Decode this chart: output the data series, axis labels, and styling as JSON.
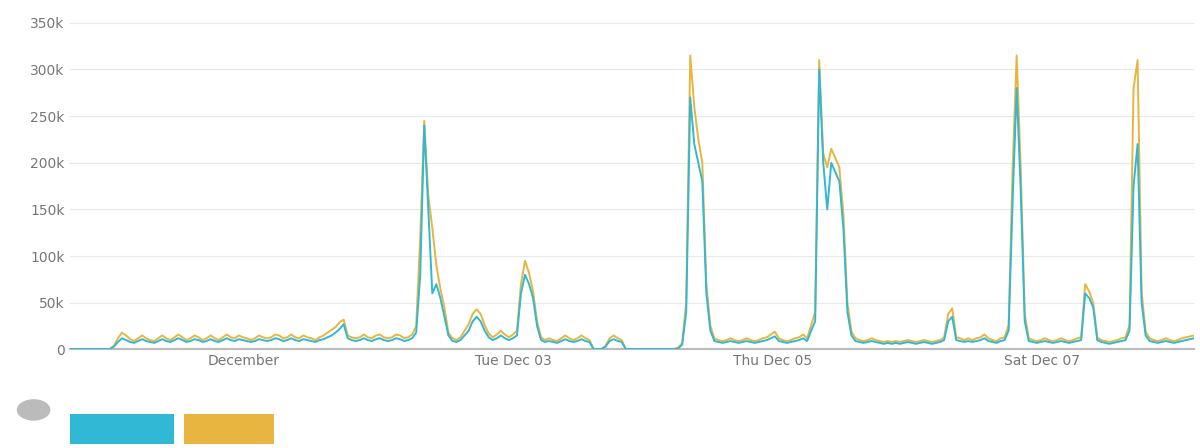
{
  "ylim": [
    0,
    360000
  ],
  "yticks": [
    0,
    50000,
    100000,
    150000,
    200000,
    250000,
    300000,
    350000
  ],
  "ytick_labels": [
    "0",
    "50k",
    "100k",
    "150k",
    "200k",
    "250k",
    "300k",
    "350k"
  ],
  "x_tick_positions": [
    0.155,
    0.395,
    0.625,
    0.865
  ],
  "x_tick_labels": [
    "December",
    "Tue Dec 03",
    "Thu Dec 05",
    "Sat Dec 07"
  ],
  "schedule_fails_color": "#30b8d4",
  "pod_created_color": "#e8b540",
  "background_color": "#ffffff",
  "grid_color": "#e8e8e8",
  "line_lw": 1.4,
  "schedule_fails_y": [
    500,
    500,
    500,
    500,
    500,
    500,
    500,
    500,
    500,
    500,
    500,
    3000,
    8000,
    12000,
    10000,
    8000,
    7000,
    9000,
    11000,
    9000,
    8000,
    7000,
    9000,
    11000,
    9000,
    8000,
    10000,
    12000,
    10000,
    8000,
    9000,
    11000,
    10000,
    8000,
    9000,
    11000,
    9000,
    8000,
    10000,
    12000,
    10000,
    9000,
    11000,
    10000,
    9000,
    8000,
    9000,
    11000,
    10000,
    9000,
    10000,
    12000,
    11000,
    9000,
    10000,
    12000,
    10000,
    9000,
    11000,
    10000,
    9000,
    8000,
    10000,
    11000,
    13000,
    15000,
    18000,
    22000,
    27000,
    12000,
    10000,
    9000,
    10000,
    12000,
    10000,
    9000,
    11000,
    12000,
    10000,
    9000,
    10000,
    12000,
    11000,
    9000,
    10000,
    12000,
    18000,
    80000,
    240000,
    150000,
    60000,
    70000,
    55000,
    35000,
    15000,
    9000,
    8000,
    10000,
    15000,
    20000,
    30000,
    35000,
    30000,
    20000,
    13000,
    10000,
    12000,
    15000,
    12000,
    10000,
    12000,
    15000,
    60000,
    80000,
    70000,
    55000,
    25000,
    10000,
    8000,
    9000,
    8000,
    7000,
    9000,
    11000,
    9000,
    8000,
    9000,
    11000,
    9000,
    8000,
    500,
    500,
    500,
    3000,
    9000,
    11000,
    9000,
    8000,
    500,
    500,
    500,
    500,
    500,
    500,
    500,
    500,
    500,
    500,
    500,
    500,
    500,
    1000,
    5000,
    40000,
    270000,
    220000,
    200000,
    180000,
    60000,
    20000,
    9000,
    8000,
    7000,
    8000,
    9000,
    8000,
    7000,
    8000,
    9000,
    8000,
    7000,
    8000,
    9000,
    10000,
    12000,
    14000,
    9000,
    8000,
    7000,
    8000,
    9000,
    10000,
    12000,
    9000,
    20000,
    30000,
    300000,
    200000,
    150000,
    200000,
    190000,
    180000,
    130000,
    40000,
    15000,
    9000,
    8000,
    7000,
    8000,
    9000,
    8000,
    7000,
    6000,
    7000,
    6000,
    7000,
    6000,
    7000,
    8000,
    7000,
    6000,
    7000,
    8000,
    7000,
    6000,
    7000,
    8000,
    10000,
    30000,
    35000,
    10000,
    9000,
    8000,
    9000,
    8000,
    9000,
    10000,
    12000,
    9000,
    8000,
    7000,
    9000,
    10000,
    20000,
    160000,
    280000,
    170000,
    30000,
    9000,
    8000,
    7000,
    8000,
    9000,
    8000,
    7000,
    8000,
    9000,
    8000,
    7000,
    8000,
    9000,
    10000,
    60000,
    55000,
    45000,
    10000,
    8000,
    7000,
    6000,
    7000,
    8000,
    9000,
    10000,
    20000,
    175000,
    220000,
    50000,
    15000,
    9000,
    8000,
    7000,
    8000,
    9000,
    8000,
    7000,
    8000,
    9000,
    10000,
    11000,
    12000
  ],
  "pod_created_y": [
    500,
    500,
    500,
    500,
    500,
    500,
    500,
    500,
    500,
    500,
    500,
    4000,
    12000,
    18000,
    15000,
    11000,
    9000,
    12000,
    15000,
    12000,
    10000,
    9000,
    12000,
    15000,
    12000,
    10000,
    13000,
    16000,
    13000,
    10000,
    12000,
    15000,
    13000,
    10000,
    12000,
    15000,
    12000,
    10000,
    13000,
    16000,
    13000,
    12000,
    15000,
    13000,
    12000,
    10000,
    12000,
    15000,
    13000,
    12000,
    13000,
    16000,
    15000,
    12000,
    13000,
    16000,
    13000,
    12000,
    15000,
    13000,
    12000,
    10000,
    13000,
    15000,
    18000,
    21000,
    24000,
    29000,
    32000,
    15000,
    13000,
    12000,
    13000,
    16000,
    13000,
    12000,
    15000,
    16000,
    13000,
    12000,
    13000,
    16000,
    15000,
    12000,
    13000,
    16000,
    25000,
    120000,
    245000,
    165000,
    130000,
    90000,
    65000,
    45000,
    18000,
    12000,
    10000,
    13000,
    20000,
    27000,
    38000,
    43000,
    38000,
    26000,
    17000,
    13000,
    16000,
    20000,
    16000,
    13000,
    16000,
    20000,
    70000,
    95000,
    82000,
    62000,
    30000,
    13000,
    10000,
    12000,
    10000,
    9000,
    12000,
    15000,
    12000,
    10000,
    12000,
    15000,
    12000,
    10000,
    500,
    500,
    500,
    4000,
    12000,
    15000,
    12000,
    10000,
    500,
    500,
    500,
    500,
    500,
    500,
    500,
    500,
    500,
    500,
    500,
    500,
    500,
    2000,
    7000,
    50000,
    315000,
    260000,
    225000,
    200000,
    70000,
    25000,
    12000,
    10000,
    9000,
    10000,
    12000,
    10000,
    9000,
    10000,
    12000,
    10000,
    9000,
    10000,
    12000,
    13000,
    16000,
    19000,
    12000,
    10000,
    9000,
    10000,
    12000,
    13000,
    16000,
    12000,
    26000,
    40000,
    310000,
    210000,
    195000,
    215000,
    205000,
    195000,
    145000,
    50000,
    19000,
    12000,
    10000,
    9000,
    10000,
    12000,
    10000,
    9000,
    8000,
    9000,
    8000,
    9000,
    8000,
    9000,
    10000,
    9000,
    8000,
    9000,
    10000,
    9000,
    8000,
    9000,
    10000,
    13000,
    38000,
    44000,
    13000,
    12000,
    10000,
    12000,
    10000,
    12000,
    13000,
    16000,
    12000,
    10000,
    9000,
    12000,
    13000,
    26000,
    195000,
    315000,
    195000,
    38000,
    12000,
    10000,
    9000,
    10000,
    12000,
    10000,
    9000,
    10000,
    12000,
    10000,
    9000,
    10000,
    12000,
    13000,
    70000,
    62000,
    50000,
    13000,
    10000,
    9000,
    8000,
    9000,
    10000,
    12000,
    13000,
    26000,
    280000,
    310000,
    62000,
    19000,
    12000,
    10000,
    9000,
    10000,
    12000,
    10000,
    9000,
    10000,
    12000,
    13000,
    14000,
    15000
  ]
}
